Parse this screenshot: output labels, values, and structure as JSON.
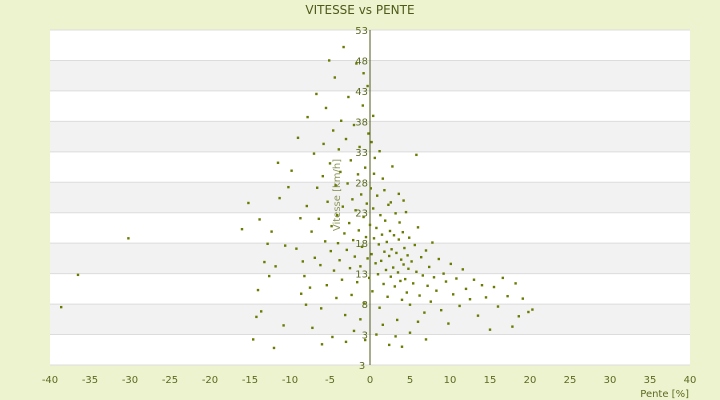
{
  "chart_data": {
    "type": "scatter",
    "title": "VITESSE vs PENTE",
    "xlabel": "Pente [%]",
    "ylabel": "Vitesse [km/h]",
    "xlim": [
      -40,
      40
    ],
    "ylim": [
      -2,
      53
    ],
    "x_ticks": [
      -40,
      -35,
      -30,
      -25,
      -20,
      -15,
      -10,
      -5,
      0,
      5,
      10,
      15,
      20,
      25,
      30,
      35,
      40
    ],
    "y_ticks": [
      3,
      8,
      13,
      18,
      23,
      28,
      33,
      38,
      43,
      48,
      53
    ],
    "y_tick_labels": [
      "3",
      "8",
      "13",
      "18",
      "23",
      "28",
      "33",
      "38",
      "43",
      "48",
      "53"
    ],
    "bottom_axis_label": "3",
    "grid": true,
    "legend": "none",
    "colors": {
      "point": "#6b7a00",
      "band_light": "#ffffff",
      "band_dark": "#f2f2f2",
      "grid": "#dcdcdc",
      "axis": "#4d5a1a"
    },
    "series": [
      {
        "points": [
          [
            -38.6,
            7.5
          ],
          [
            -36.5,
            12.8
          ],
          [
            -30.2,
            18.8
          ],
          [
            -16.0,
            20.3
          ],
          [
            -15.2,
            24.6
          ],
          [
            -14.6,
            2.2
          ],
          [
            -14.0,
            10.3
          ],
          [
            -13.8,
            21.9
          ],
          [
            -13.6,
            6.8
          ],
          [
            -13.2,
            14.9
          ],
          [
            -12.6,
            12.6
          ],
          [
            -12.3,
            19.9
          ],
          [
            -12.0,
            0.8
          ],
          [
            -11.5,
            31.2
          ],
          [
            -11.3,
            25.4
          ],
          [
            -10.6,
            17.6
          ],
          [
            -10.2,
            27.2
          ],
          [
            -9.8,
            29.9
          ],
          [
            -9.2,
            17.1
          ],
          [
            -8.7,
            22.1
          ],
          [
            -8.6,
            9.7
          ],
          [
            -8.4,
            15.0
          ],
          [
            -8.2,
            12.6
          ],
          [
            -7.9,
            24.1
          ],
          [
            -7.8,
            38.7
          ],
          [
            -7.5,
            10.7
          ],
          [
            -7.3,
            19.9
          ],
          [
            -7.2,
            4.1
          ],
          [
            -7.0,
            32.7
          ],
          [
            -6.9,
            15.6
          ],
          [
            -6.7,
            42.5
          ],
          [
            -6.6,
            27.1
          ],
          [
            -6.4,
            22.0
          ],
          [
            -6.2,
            14.4
          ],
          [
            -6.1,
            7.3
          ],
          [
            -5.9,
            29.0
          ],
          [
            -5.8,
            34.3
          ],
          [
            -5.6,
            18.3
          ],
          [
            -5.5,
            40.2
          ],
          [
            -5.4,
            11.1
          ],
          [
            -5.3,
            24.8
          ],
          [
            -5.1,
            48.0
          ],
          [
            -5.0,
            31.1
          ],
          [
            -4.9,
            16.7
          ],
          [
            -4.8,
            20.8
          ],
          [
            -4.7,
            2.6
          ],
          [
            -4.6,
            36.5
          ],
          [
            -4.5,
            13.5
          ],
          [
            -4.4,
            45.2
          ],
          [
            -4.3,
            27.5
          ],
          [
            -4.2,
            9.0
          ],
          [
            -4.1,
            22.6
          ],
          [
            -4.0,
            18.0
          ],
          [
            -3.9,
            33.4
          ],
          [
            -3.8,
            15.2
          ],
          [
            -3.7,
            29.7
          ],
          [
            -3.6,
            38.1
          ],
          [
            -3.5,
            12.0
          ],
          [
            -3.4,
            24.0
          ],
          [
            -3.3,
            50.2
          ],
          [
            -3.2,
            19.6
          ],
          [
            -3.1,
            6.2
          ],
          [
            -3.0,
            35.1
          ],
          [
            -2.9,
            16.9
          ],
          [
            -2.8,
            27.8
          ],
          [
            -2.7,
            42.0
          ],
          [
            -2.6,
            21.3
          ],
          [
            -2.5,
            13.9
          ],
          [
            -2.4,
            31.6
          ],
          [
            -2.3,
            9.5
          ],
          [
            -2.2,
            25.2
          ],
          [
            -2.1,
            18.5
          ],
          [
            -2.0,
            37.4
          ],
          [
            -1.9,
            15.8
          ],
          [
            -1.8,
            23.4
          ],
          [
            -1.7,
            47.5
          ],
          [
            -1.6,
            11.6
          ],
          [
            -1.5,
            29.3
          ],
          [
            -1.4,
            20.1
          ],
          [
            -1.3,
            33.8
          ],
          [
            -1.2,
            14.2
          ],
          [
            -1.1,
            26.0
          ],
          [
            -1.0,
            17.4
          ],
          [
            -0.9,
            40.6
          ],
          [
            -0.8,
            22.3
          ],
          [
            -0.7,
            8.1
          ],
          [
            -0.6,
            30.4
          ],
          [
            -0.5,
            19.0
          ],
          [
            -0.4,
            24.5
          ],
          [
            -0.3,
            15.5
          ],
          [
            -0.2,
            36.0
          ],
          [
            -0.1,
            12.3
          ],
          [
            0.0,
            21.0
          ],
          [
            0.1,
            27.0
          ],
          [
            0.2,
            16.2
          ],
          [
            0.3,
            10.1
          ],
          [
            0.4,
            23.7
          ],
          [
            0.5,
            18.8
          ],
          [
            0.6,
            32.0
          ],
          [
            0.7,
            14.7
          ],
          [
            0.8,
            20.5
          ],
          [
            0.9,
            25.8
          ],
          [
            1.0,
            12.9
          ],
          [
            1.1,
            17.8
          ],
          [
            1.2,
            7.4
          ],
          [
            1.3,
            22.6
          ],
          [
            1.4,
            15.1
          ],
          [
            1.5,
            19.4
          ],
          [
            1.6,
            28.6
          ],
          [
            1.7,
            11.3
          ],
          [
            1.8,
            16.6
          ],
          [
            1.9,
            21.7
          ],
          [
            2.0,
            13.6
          ],
          [
            2.1,
            18.2
          ],
          [
            2.2,
            9.2
          ],
          [
            2.3,
            24.3
          ],
          [
            2.4,
            15.9
          ],
          [
            2.5,
            20.0
          ],
          [
            2.6,
            12.5
          ],
          [
            2.7,
            17.0
          ],
          [
            2.8,
            30.6
          ],
          [
            2.9,
            14.0
          ],
          [
            3.0,
            19.3
          ],
          [
            3.1,
            10.9
          ],
          [
            3.2,
            22.9
          ],
          [
            3.3,
            16.4
          ],
          [
            3.4,
            5.4
          ],
          [
            3.5,
            13.2
          ],
          [
            3.6,
            18.6
          ],
          [
            3.7,
            21.4
          ],
          [
            3.8,
            11.8
          ],
          [
            3.9,
            15.3
          ],
          [
            4.0,
            8.7
          ],
          [
            4.1,
            19.8
          ],
          [
            4.2,
            14.5
          ],
          [
            4.3,
            17.2
          ],
          [
            4.4,
            12.1
          ],
          [
            4.5,
            23.1
          ],
          [
            4.6,
            9.9
          ],
          [
            4.7,
            16.0
          ],
          [
            4.8,
            13.8
          ],
          [
            4.9,
            18.9
          ],
          [
            5.0,
            7.9
          ],
          [
            5.2,
            15.0
          ],
          [
            5.4,
            11.4
          ],
          [
            5.6,
            17.7
          ],
          [
            5.8,
            13.3
          ],
          [
            6.0,
            20.6
          ],
          [
            6.2,
            9.4
          ],
          [
            6.4,
            15.7
          ],
          [
            6.6,
            12.7
          ],
          [
            6.8,
            6.6
          ],
          [
            7.0,
            16.8
          ],
          [
            7.2,
            11.0
          ],
          [
            7.4,
            14.1
          ],
          [
            7.6,
            8.4
          ],
          [
            7.8,
            18.1
          ],
          [
            8.0,
            12.4
          ],
          [
            8.3,
            10.2
          ],
          [
            8.6,
            15.4
          ],
          [
            8.9,
            7.0
          ],
          [
            9.2,
            13.0
          ],
          [
            9.5,
            11.7
          ],
          [
            9.8,
            4.8
          ],
          [
            10.1,
            14.6
          ],
          [
            10.4,
            9.6
          ],
          [
            10.8,
            12.2
          ],
          [
            11.2,
            7.7
          ],
          [
            11.6,
            13.7
          ],
          [
            12.0,
            10.5
          ],
          [
            12.5,
            8.8
          ],
          [
            13.0,
            12.0
          ],
          [
            13.5,
            6.1
          ],
          [
            14.0,
            11.1
          ],
          [
            14.5,
            9.1
          ],
          [
            15.0,
            3.8
          ],
          [
            15.5,
            10.8
          ],
          [
            16.0,
            7.6
          ],
          [
            16.6,
            12.3
          ],
          [
            17.2,
            9.3
          ],
          [
            17.8,
            4.3
          ],
          [
            18.2,
            11.4
          ],
          [
            18.6,
            6.0
          ],
          [
            19.1,
            8.9
          ],
          [
            19.8,
            6.7
          ],
          [
            20.3,
            7.1
          ],
          [
            -0.6,
            2.1
          ],
          [
            0.8,
            3.0
          ],
          [
            1.6,
            4.6
          ],
          [
            2.4,
            1.3
          ],
          [
            3.2,
            2.7
          ],
          [
            4.0,
            1.0
          ],
          [
            -1.2,
            5.5
          ],
          [
            -2.0,
            3.6
          ],
          [
            -3.0,
            1.8
          ],
          [
            5.0,
            3.3
          ],
          [
            6.0,
            5.1
          ],
          [
            7.0,
            2.2
          ],
          [
            0.2,
            34.6
          ],
          [
            0.5,
            29.4
          ],
          [
            -0.3,
            43.8
          ],
          [
            0.4,
            38.9
          ],
          [
            -0.8,
            45.9
          ],
          [
            1.2,
            33.1
          ],
          [
            1.8,
            26.7
          ],
          [
            2.6,
            24.7
          ],
          [
            5.8,
            32.5
          ],
          [
            3.6,
            26.1
          ],
          [
            4.2,
            25.0
          ],
          [
            -9.0,
            35.3
          ],
          [
            -11.8,
            14.2
          ],
          [
            -10.8,
            4.5
          ],
          [
            -14.2,
            5.9
          ],
          [
            -6.0,
            1.4
          ],
          [
            -8.0,
            7.9
          ],
          [
            -12.8,
            17.9
          ]
        ]
      }
    ]
  }
}
